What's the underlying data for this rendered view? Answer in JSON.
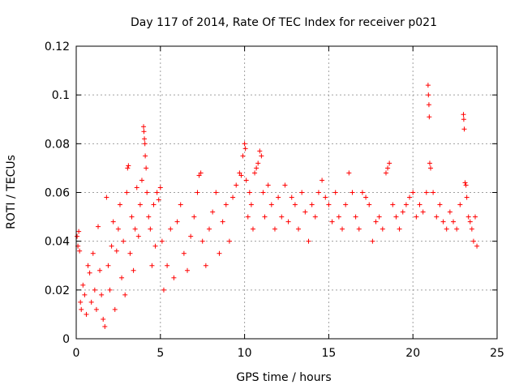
{
  "chart_data": {
    "type": "scatter",
    "title": "Day 117 of 2014, Rate Of TEC Index for receiver p021",
    "xlabel": "GPS time / hours",
    "ylabel": "ROTI / TECUs",
    "xlim": [
      0,
      25
    ],
    "ylim": [
      0,
      0.12
    ],
    "xticks": [
      0,
      5,
      10,
      15,
      20,
      25
    ],
    "xtick_labels": [
      "0",
      "5",
      "10",
      "15",
      "20",
      "25"
    ],
    "yticks": [
      0,
      0.02,
      0.04,
      0.06,
      0.08,
      0.1,
      0.12
    ],
    "ytick_labels": [
      "0",
      "0.02",
      "0.04",
      "0.06",
      "0.08",
      "0.1",
      "0.12"
    ],
    "grid": true,
    "marker": "+",
    "color": "#ff0000",
    "series": [
      {
        "points": [
          [
            0.05,
            0.042
          ],
          [
            0.1,
            0.038
          ],
          [
            0.15,
            0.044
          ],
          [
            0.2,
            0.036
          ],
          [
            0.25,
            0.015
          ],
          [
            0.3,
            0.012
          ],
          [
            0.4,
            0.022
          ],
          [
            0.5,
            0.018
          ],
          [
            0.6,
            0.01
          ],
          [
            0.7,
            0.03
          ],
          [
            0.8,
            0.027
          ],
          [
            0.9,
            0.015
          ],
          [
            1.0,
            0.035
          ],
          [
            1.1,
            0.02
          ],
          [
            1.2,
            0.012
          ],
          [
            1.3,
            0.046
          ],
          [
            1.4,
            0.028
          ],
          [
            1.5,
            0.018
          ],
          [
            1.6,
            0.008
          ],
          [
            1.7,
            0.005
          ],
          [
            1.8,
            0.058
          ],
          [
            1.9,
            0.03
          ],
          [
            2.0,
            0.02
          ],
          [
            2.1,
            0.038
          ],
          [
            2.2,
            0.048
          ],
          [
            2.3,
            0.012
          ],
          [
            2.4,
            0.036
          ],
          [
            2.5,
            0.045
          ],
          [
            2.6,
            0.055
          ],
          [
            2.7,
            0.025
          ],
          [
            2.8,
            0.04
          ],
          [
            2.9,
            0.018
          ],
          [
            3.0,
            0.06
          ],
          [
            3.05,
            0.07
          ],
          [
            3.1,
            0.071
          ],
          [
            3.2,
            0.035
          ],
          [
            3.3,
            0.05
          ],
          [
            3.4,
            0.028
          ],
          [
            3.5,
            0.045
          ],
          [
            3.6,
            0.062
          ],
          [
            3.7,
            0.042
          ],
          [
            3.8,
            0.055
          ],
          [
            3.9,
            0.065
          ],
          [
            4.0,
            0.087
          ],
          [
            4.02,
            0.085
          ],
          [
            4.05,
            0.082
          ],
          [
            4.08,
            0.08
          ],
          [
            4.1,
            0.075
          ],
          [
            4.15,
            0.07
          ],
          [
            4.2,
            0.06
          ],
          [
            4.3,
            0.05
          ],
          [
            4.4,
            0.045
          ],
          [
            4.5,
            0.03
          ],
          [
            4.6,
            0.055
          ],
          [
            4.7,
            0.038
          ],
          [
            4.8,
            0.06
          ],
          [
            4.9,
            0.057
          ],
          [
            5.0,
            0.062
          ],
          [
            5.1,
            0.04
          ],
          [
            5.2,
            0.02
          ],
          [
            5.4,
            0.03
          ],
          [
            5.6,
            0.045
          ],
          [
            5.8,
            0.025
          ],
          [
            6.0,
            0.048
          ],
          [
            6.2,
            0.055
          ],
          [
            6.4,
            0.035
          ],
          [
            6.6,
            0.028
          ],
          [
            6.8,
            0.042
          ],
          [
            7.0,
            0.05
          ],
          [
            7.2,
            0.06
          ],
          [
            7.3,
            0.067
          ],
          [
            7.4,
            0.068
          ],
          [
            7.5,
            0.04
          ],
          [
            7.7,
            0.03
          ],
          [
            7.9,
            0.045
          ],
          [
            8.1,
            0.052
          ],
          [
            8.3,
            0.06
          ],
          [
            8.5,
            0.035
          ],
          [
            8.7,
            0.048
          ],
          [
            8.9,
            0.055
          ],
          [
            9.1,
            0.04
          ],
          [
            9.3,
            0.058
          ],
          [
            9.5,
            0.063
          ],
          [
            9.7,
            0.068
          ],
          [
            9.8,
            0.067
          ],
          [
            9.9,
            0.075
          ],
          [
            10.0,
            0.08
          ],
          [
            10.05,
            0.078
          ],
          [
            10.1,
            0.065
          ],
          [
            10.2,
            0.05
          ],
          [
            10.3,
            0.06
          ],
          [
            10.4,
            0.055
          ],
          [
            10.5,
            0.045
          ],
          [
            10.6,
            0.068
          ],
          [
            10.7,
            0.07
          ],
          [
            10.8,
            0.072
          ],
          [
            10.9,
            0.077
          ],
          [
            11.0,
            0.075
          ],
          [
            11.1,
            0.06
          ],
          [
            11.2,
            0.05
          ],
          [
            11.4,
            0.063
          ],
          [
            11.6,
            0.055
          ],
          [
            11.8,
            0.045
          ],
          [
            12.0,
            0.058
          ],
          [
            12.2,
            0.05
          ],
          [
            12.4,
            0.063
          ],
          [
            12.6,
            0.048
          ],
          [
            12.8,
            0.058
          ],
          [
            13.0,
            0.055
          ],
          [
            13.2,
            0.045
          ],
          [
            13.4,
            0.06
          ],
          [
            13.6,
            0.052
          ],
          [
            13.8,
            0.04
          ],
          [
            14.0,
            0.055
          ],
          [
            14.2,
            0.05
          ],
          [
            14.4,
            0.06
          ],
          [
            14.6,
            0.065
          ],
          [
            14.8,
            0.058
          ],
          [
            15.0,
            0.055
          ],
          [
            15.2,
            0.048
          ],
          [
            15.4,
            0.06
          ],
          [
            15.6,
            0.05
          ],
          [
            15.8,
            0.045
          ],
          [
            16.0,
            0.055
          ],
          [
            16.2,
            0.068
          ],
          [
            16.4,
            0.06
          ],
          [
            16.6,
            0.05
          ],
          [
            16.8,
            0.045
          ],
          [
            17.0,
            0.06
          ],
          [
            17.2,
            0.058
          ],
          [
            17.4,
            0.055
          ],
          [
            17.6,
            0.04
          ],
          [
            17.8,
            0.048
          ],
          [
            18.0,
            0.05
          ],
          [
            18.2,
            0.045
          ],
          [
            18.4,
            0.068
          ],
          [
            18.5,
            0.07
          ],
          [
            18.6,
            0.072
          ],
          [
            18.8,
            0.055
          ],
          [
            19.0,
            0.05
          ],
          [
            19.2,
            0.045
          ],
          [
            19.4,
            0.052
          ],
          [
            19.6,
            0.055
          ],
          [
            19.8,
            0.058
          ],
          [
            20.0,
            0.06
          ],
          [
            20.2,
            0.05
          ],
          [
            20.4,
            0.055
          ],
          [
            20.6,
            0.052
          ],
          [
            20.8,
            0.06
          ],
          [
            20.9,
            0.104
          ],
          [
            20.92,
            0.1
          ],
          [
            20.95,
            0.096
          ],
          [
            20.97,
            0.091
          ],
          [
            21.0,
            0.072
          ],
          [
            21.05,
            0.07
          ],
          [
            21.2,
            0.06
          ],
          [
            21.4,
            0.05
          ],
          [
            21.6,
            0.055
          ],
          [
            21.8,
            0.048
          ],
          [
            22.0,
            0.045
          ],
          [
            22.2,
            0.052
          ],
          [
            22.4,
            0.048
          ],
          [
            22.6,
            0.045
          ],
          [
            22.8,
            0.055
          ],
          [
            23.0,
            0.092
          ],
          [
            23.02,
            0.09
          ],
          [
            23.05,
            0.086
          ],
          [
            23.1,
            0.064
          ],
          [
            23.15,
            0.063
          ],
          [
            23.2,
            0.058
          ],
          [
            23.3,
            0.05
          ],
          [
            23.4,
            0.048
          ],
          [
            23.5,
            0.045
          ],
          [
            23.6,
            0.04
          ],
          [
            23.7,
            0.05
          ],
          [
            23.8,
            0.038
          ]
        ]
      }
    ]
  }
}
